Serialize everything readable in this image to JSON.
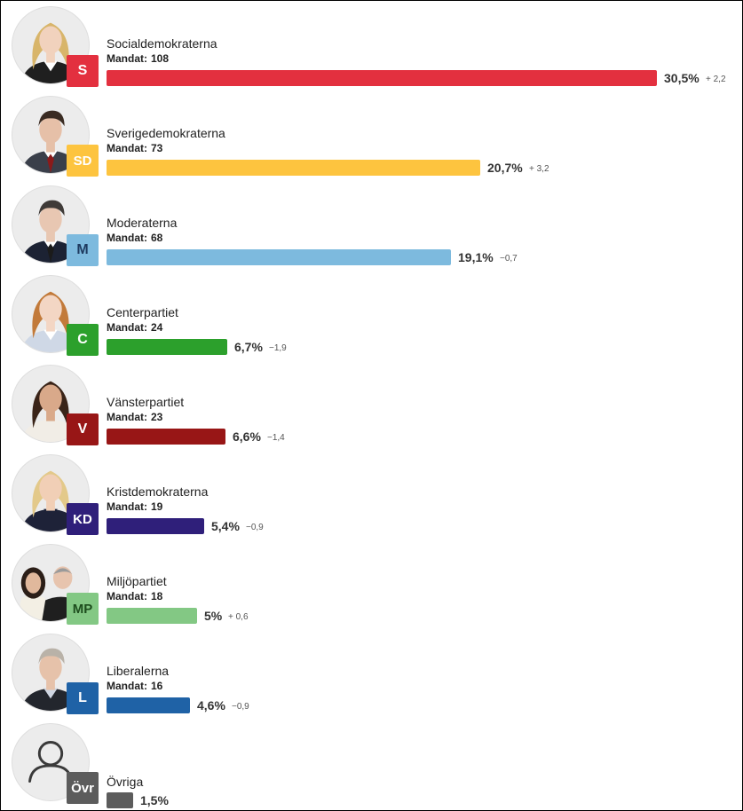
{
  "chart_data": {
    "type": "bar",
    "orientation": "horizontal",
    "title": "",
    "xlabel": "",
    "ylabel": "",
    "xlim": [
      0,
      30.5
    ],
    "seats_label": "Mandat:",
    "categories": [
      "Socialdemokraterna",
      "Sverigedemokraterna",
      "Moderaterna",
      "Centerpartiet",
      "Vänsterpartiet",
      "Kristdemokraterna",
      "Miljöpartiet",
      "Liberalerna",
      "Övriga"
    ],
    "series": [
      {
        "values": [
          30.5,
          20.7,
          19.1,
          6.7,
          6.6,
          5.4,
          5,
          4.6,
          1.5
        ]
      }
    ],
    "bars": [
      {
        "party": "Socialdemokraterna",
        "abbr": "S",
        "seats": "108",
        "value": 30.5,
        "pct_label": "30,5%",
        "change": "+ 2,2",
        "color": "#e3303f",
        "badge_color": "#e3303f",
        "badge_text_color": "#ffffff",
        "avatar": "person-photo-woman-blonde"
      },
      {
        "party": "Sverigedemokraterna",
        "abbr": "SD",
        "seats": "73",
        "value": 20.7,
        "pct_label": "20,7%",
        "change": "+ 3,2",
        "color": "#fdc43f",
        "badge_color": "#fdc43f",
        "badge_text_color": "#ffffff",
        "avatar": "person-photo-man-beard"
      },
      {
        "party": "Moderaterna",
        "abbr": "M",
        "seats": "68",
        "value": 19.1,
        "pct_label": "19,1%",
        "change": "−0,7",
        "color": "#7dbade",
        "badge_color": "#7dbade",
        "badge_text_color": "#1e3a5f",
        "avatar": "person-photo-man-glasses"
      },
      {
        "party": "Centerpartiet",
        "abbr": "C",
        "seats": "24",
        "value": 6.7,
        "pct_label": "6,7%",
        "change": "−1,9",
        "color": "#2ca02c",
        "badge_color": "#2ca02c",
        "badge_text_color": "#ffffff",
        "avatar": "person-photo-woman-redhead"
      },
      {
        "party": "Vänsterpartiet",
        "abbr": "V",
        "seats": "23",
        "value": 6.6,
        "pct_label": "6,6%",
        "change": "−1,4",
        "color": "#981616",
        "badge_color": "#981616",
        "badge_text_color": "#ffffff",
        "avatar": "person-photo-woman-dark-hair"
      },
      {
        "party": "Kristdemokraterna",
        "abbr": "KD",
        "seats": "19",
        "value": 5.4,
        "pct_label": "5,4%",
        "change": "−0,9",
        "color": "#2f1f7a",
        "badge_color": "#2f1f7a",
        "badge_text_color": "#ffffff",
        "avatar": "person-photo-woman-blonde-long"
      },
      {
        "party": "Miljöpartiet",
        "abbr": "MP",
        "seats": "18",
        "value": 5,
        "pct_label": "5%",
        "change": "+ 0,6",
        "color": "#83c884",
        "badge_color": "#83c884",
        "badge_text_color": "#1d4d1d",
        "avatar": "two-persons-photo"
      },
      {
        "party": "Liberalerna",
        "abbr": "L",
        "seats": "16",
        "value": 4.6,
        "pct_label": "4,6%",
        "change": "−0,9",
        "color": "#1f62a6",
        "badge_color": "#1f62a6",
        "badge_text_color": "#ffffff",
        "avatar": "person-photo-man-grey-hair"
      },
      {
        "party": "Övriga",
        "abbr": "Övr",
        "seats": "",
        "value": 1.5,
        "pct_label": "1,5%",
        "change": "",
        "color": "#5c5c5c",
        "badge_color": "#5c5c5c",
        "badge_text_color": "#ffffff",
        "avatar": "person-placeholder-icon"
      }
    ]
  }
}
